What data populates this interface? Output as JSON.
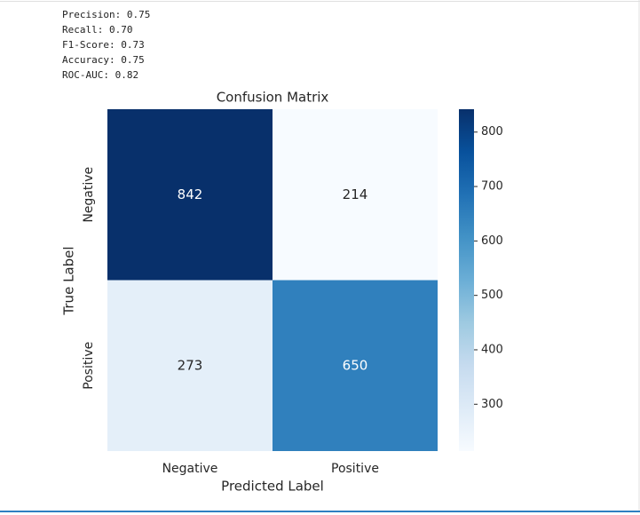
{
  "console": {
    "lines": [
      "Precision: 0.75",
      "Recall: 0.70",
      "F1-Score: 0.73",
      "Accuracy: 0.75",
      "ROC-AUC: 0.82"
    ]
  },
  "chart_data": {
    "type": "heatmap",
    "title": "Confusion Matrix",
    "xlabel": "Predicted Label",
    "ylabel": "True Label",
    "x_categories": [
      "Negative",
      "Positive"
    ],
    "y_categories": [
      "Negative",
      "Positive"
    ],
    "values": [
      [
        842,
        214
      ],
      [
        273,
        650
      ]
    ],
    "colormap": "Blues",
    "clim": [
      214,
      842
    ],
    "cticks": [
      300,
      400,
      500,
      600,
      700,
      800
    ]
  }
}
